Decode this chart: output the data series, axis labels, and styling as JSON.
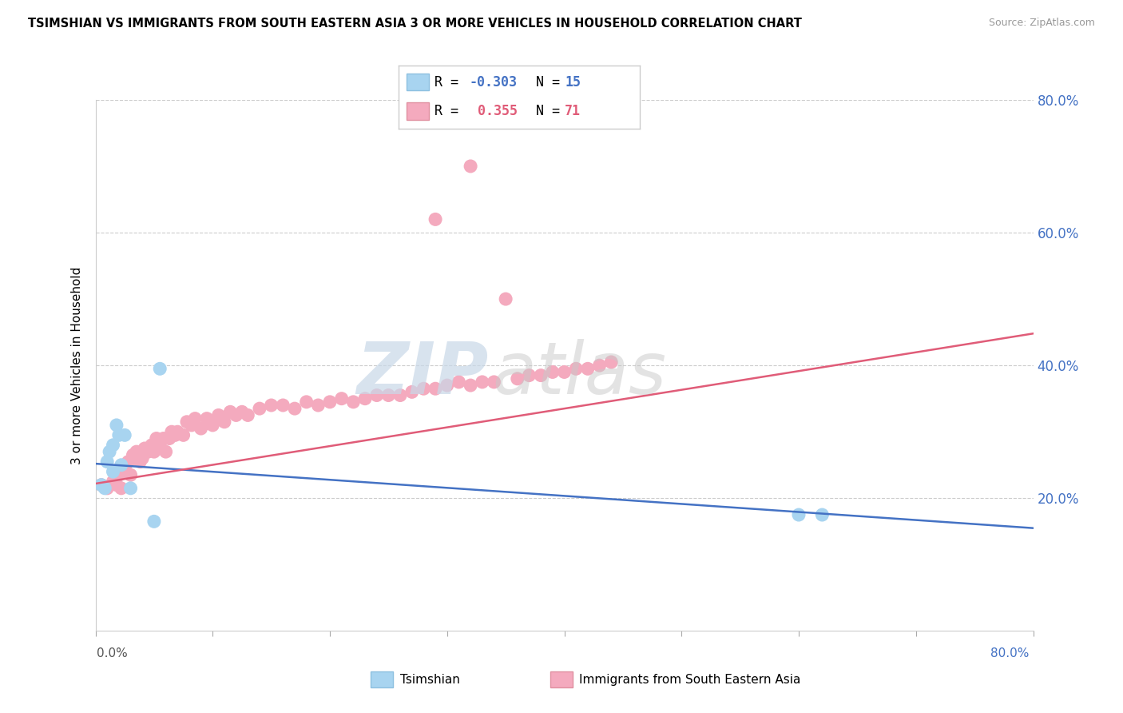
{
  "title": "TSIMSHIAN VS IMMIGRANTS FROM SOUTH EASTERN ASIA 3 OR MORE VEHICLES IN HOUSEHOLD CORRELATION CHART",
  "source": "Source: ZipAtlas.com",
  "ylabel": "3 or more Vehicles in Household",
  "series1_name": "Tsimshian",
  "series2_name": "Immigrants from South Eastern Asia",
  "series1_color": "#A8D4F0",
  "series2_color": "#F4AABE",
  "series1_edge_color": "#A8D4F0",
  "series2_edge_color": "#F4AABE",
  "line1_color": "#4472C4",
  "line2_color": "#E05C78",
  "background_color": "#FFFFFF",
  "grid_color": "#CCCCCC",
  "right_tick_color": "#4472C4",
  "xlim": [
    0.0,
    0.8
  ],
  "ylim": [
    0.0,
    0.8
  ],
  "yticks": [
    0.2,
    0.4,
    0.6,
    0.8
  ],
  "ytick_labels": [
    "20.0%",
    "40.0%",
    "60.0%",
    "80.0%"
  ],
  "legend_R1": "-0.303",
  "legend_N1": "15",
  "legend_R2": "0.355",
  "legend_N2": "71",
  "tsimshian_x": [
    0.005,
    0.008,
    0.01,
    0.012,
    0.015,
    0.015,
    0.018,
    0.02,
    0.022,
    0.025,
    0.03,
    0.05,
    0.055,
    0.6,
    0.62
  ],
  "tsimshian_y": [
    0.22,
    0.215,
    0.255,
    0.27,
    0.28,
    0.24,
    0.31,
    0.295,
    0.25,
    0.295,
    0.215,
    0.165,
    0.395,
    0.175,
    0.175
  ],
  "immigrants_x": [
    0.005,
    0.01,
    0.015,
    0.018,
    0.02,
    0.022,
    0.025,
    0.028,
    0.03,
    0.032,
    0.035,
    0.038,
    0.04,
    0.042,
    0.045,
    0.048,
    0.05,
    0.052,
    0.055,
    0.058,
    0.06,
    0.063,
    0.065,
    0.068,
    0.07,
    0.075,
    0.078,
    0.082,
    0.085,
    0.09,
    0.095,
    0.1,
    0.105,
    0.11,
    0.115,
    0.12,
    0.125,
    0.13,
    0.14,
    0.15,
    0.16,
    0.17,
    0.18,
    0.19,
    0.2,
    0.21,
    0.22,
    0.23,
    0.24,
    0.25,
    0.26,
    0.27,
    0.28,
    0.29,
    0.3,
    0.31,
    0.32,
    0.33,
    0.34,
    0.36,
    0.37,
    0.38,
    0.39,
    0.4,
    0.41,
    0.42,
    0.43,
    0.44,
    0.29,
    0.32,
    0.35
  ],
  "immigrants_y": [
    0.22,
    0.215,
    0.225,
    0.22,
    0.235,
    0.215,
    0.245,
    0.255,
    0.235,
    0.265,
    0.27,
    0.255,
    0.26,
    0.275,
    0.27,
    0.28,
    0.27,
    0.29,
    0.28,
    0.29,
    0.27,
    0.29,
    0.3,
    0.295,
    0.3,
    0.295,
    0.315,
    0.31,
    0.32,
    0.305,
    0.32,
    0.31,
    0.325,
    0.315,
    0.33,
    0.325,
    0.33,
    0.325,
    0.335,
    0.34,
    0.34,
    0.335,
    0.345,
    0.34,
    0.345,
    0.35,
    0.345,
    0.35,
    0.355,
    0.355,
    0.355,
    0.36,
    0.365,
    0.365,
    0.37,
    0.375,
    0.37,
    0.375,
    0.375,
    0.38,
    0.385,
    0.385,
    0.39,
    0.39,
    0.395,
    0.395,
    0.4,
    0.405,
    0.62,
    0.7,
    0.5
  ],
  "blue_line_x": [
    0.0,
    0.8
  ],
  "blue_line_y": [
    0.252,
    0.155
  ],
  "pink_line_x": [
    0.0,
    0.8
  ],
  "pink_line_y": [
    0.222,
    0.448
  ]
}
